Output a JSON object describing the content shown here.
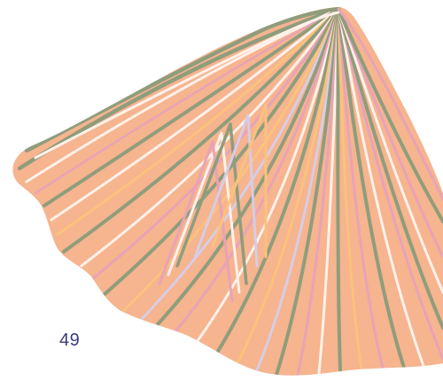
{
  "page": {
    "page_number": "49"
  },
  "illustration": {
    "icon": "shell-icon",
    "colors": {
      "body": "#f6b48f",
      "edge": "#f6b48f",
      "green": "#8f9d7c",
      "pink": "#e8a3b6",
      "white": "#fff1ea",
      "yellow": "#fbc27c",
      "lavender": "#d6cde6",
      "page_number": "#3c3a7a"
    }
  }
}
